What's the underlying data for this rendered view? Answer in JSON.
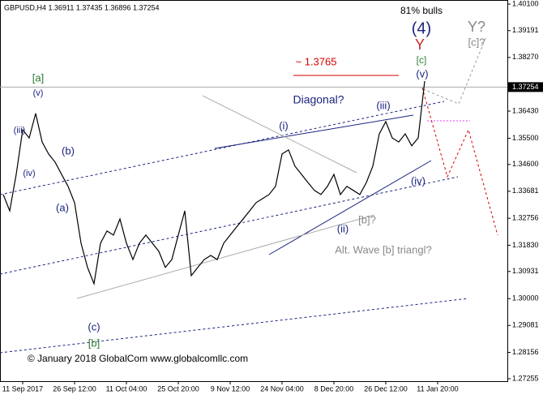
{
  "chart_data": {
    "type": "line",
    "title": "GBPUSD,H4  1.36911 1.37435 1.36896 1.37254",
    "categories": [
      null,
      null,
      null,
      "11 Sep 2017",
      null,
      null,
      null,
      null,
      null,
      null,
      null,
      "26 Sep 12:00",
      null,
      null,
      null,
      null,
      null,
      null,
      null,
      "11 Oct 04:00",
      null,
      null,
      null,
      null,
      null,
      null,
      null,
      "25 Oct 20:00",
      null,
      null,
      null,
      null,
      null,
      null,
      null,
      "9 Nov 12:00",
      null,
      null,
      null,
      null,
      null,
      null,
      null,
      "24 Nov 04:00",
      null,
      null,
      null,
      null,
      null,
      null,
      null,
      "8 Dec 20:00",
      null,
      null,
      null,
      null,
      null,
      null,
      null,
      "26 Dec 12:00",
      null,
      null,
      null,
      null,
      null,
      null,
      null,
      "11 Jan 20:00",
      null,
      null,
      null,
      null,
      null,
      null,
      null,
      null,
      null,
      null
    ],
    "series": [
      {
        "name": "GBPUSD,H4",
        "color": "#000000",
        "values": [
          1.3357,
          1.3301,
          1.3426,
          1.3579,
          1.3551,
          1.3635,
          1.3537,
          1.3496,
          1.3468,
          1.3426,
          1.3385,
          1.3329,
          1.319,
          1.3107,
          1.3051,
          1.319,
          1.3232,
          1.3218,
          1.3273,
          1.319,
          1.3134,
          1.319,
          1.3218,
          1.319,
          1.3162,
          1.3107,
          1.3134,
          1.3218,
          1.3301,
          1.3079,
          1.3107,
          1.3134,
          1.3148,
          1.3134,
          1.319,
          1.3218,
          1.3246,
          1.3273,
          1.3301,
          1.3329,
          1.3343,
          1.3357,
          1.3385,
          1.3496,
          1.351,
          1.3454,
          1.3426,
          1.3398,
          1.3371,
          1.3357,
          1.3385,
          1.3426,
          1.3357,
          1.3385,
          1.3371,
          1.3357,
          1.3398,
          1.3454,
          1.3565,
          1.3607,
          1.3551,
          1.3537,
          1.3565,
          1.3524,
          1.3551,
          1.3746,
          null,
          null,
          null,
          null,
          null,
          null,
          null,
          null,
          null,
          null,
          null,
          null
        ]
      }
    ],
    "ylim": [
      1.2717,
      1.4024
    ],
    "yticks": [
      {
        "value": 1.401,
        "label": "1.40100"
      },
      {
        "value": 1.39191,
        "label": "1.39191"
      },
      {
        "value": 1.3827,
        "label": "1.38270"
      },
      {
        "value": 1.3643,
        "label": "1.36430"
      },
      {
        "value": 1.355,
        "label": "1.35500"
      },
      {
        "value": 1.346,
        "label": "1.34600"
      },
      {
        "value": 1.33681,
        "label": "1.33681"
      },
      {
        "value": 1.32756,
        "label": "1.32756"
      },
      {
        "value": 1.3183,
        "label": "1.31830"
      },
      {
        "value": 1.30931,
        "label": "1.30931"
      },
      {
        "value": 1.3,
        "label": "1.30000"
      },
      {
        "value": 1.29081,
        "label": "1.29081"
      },
      {
        "value": 1.28156,
        "label": "1.28156"
      },
      {
        "value": 1.27255,
        "label": "1.27255"
      }
    ],
    "current_price": 1.37254,
    "annotations": [
      {
        "text": "81% bulls",
        "color": "#000000"
      },
      {
        "text": "(4)",
        "color": "#1a237e"
      },
      {
        "text": "Y",
        "color": "#c62828"
      },
      {
        "text": "[c]",
        "color": "#2e7d32"
      },
      {
        "text": "(v)",
        "color": "#1a237e"
      },
      {
        "text": "Y?",
        "color": "#888888"
      },
      {
        "text": "[c]?",
        "color": "#888888"
      },
      {
        "text": "~ 1.3765",
        "color": "#d50000"
      },
      {
        "text": "Diagonal?",
        "color": "#1a237e"
      },
      {
        "text": "(iii)",
        "color": "#1a237e"
      },
      {
        "text": "(i)",
        "color": "#1a237e"
      },
      {
        "text": "(iv)",
        "color": "#1a237e"
      },
      {
        "text": "[b]?",
        "color": "#888888"
      },
      {
        "text": "(ii)",
        "color": "#1a237e"
      },
      {
        "text": "Alt. Wave [b] triangl?",
        "color": "#888888"
      },
      {
        "text": "[a]",
        "color": "#2e7d32"
      },
      {
        "text": "(v)",
        "color": "#1a237e"
      },
      {
        "text": "(iii)",
        "color": "#1a237e"
      },
      {
        "text": "(b)",
        "color": "#1a237e"
      },
      {
        "text": "(iv)",
        "color": "#1a237e"
      },
      {
        "text": "(a)",
        "color": "#1a237e"
      },
      {
        "text": "(c)",
        "color": "#1a237e"
      },
      {
        "text": "[b]",
        "color": "#2e7d32"
      },
      {
        "text": "© January 2018 GlobalCom www.globalcomllc.com",
        "color": "#000000"
      }
    ]
  }
}
